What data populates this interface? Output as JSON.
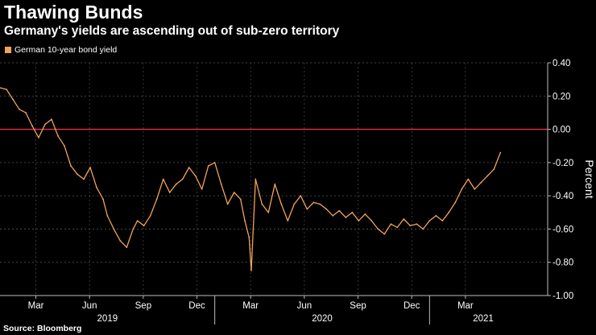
{
  "header": {
    "title": "Thawing Bunds",
    "subtitle": "Germany's yields are ascending out of sub-zero territory"
  },
  "footer": {
    "source": "Source: Bloomberg"
  },
  "colors": {
    "series": "#f0a35a",
    "zero_line": "#e8314a",
    "axis": "#bbbbbb",
    "background": "#000000"
  },
  "chart_data": {
    "type": "line",
    "title": "Thawing Bunds",
    "subtitle": "Germany's yields are ascending out of sub-zero territory",
    "ylabel": "Percent",
    "xlabel": "",
    "ylim": [
      -1.0,
      0.4
    ],
    "yticks": [
      0.4,
      0.2,
      0.0,
      -0.2,
      -0.4,
      -0.6,
      -0.8,
      -1.0
    ],
    "ytick_labels": [
      "0.40",
      "0.20",
      "0.00",
      "-0.20",
      "-0.40",
      "-0.60",
      "-0.80",
      "-1.00"
    ],
    "xlim": [
      2019.0,
      2021.55
    ],
    "xticks": [
      {
        "x": 2019.167,
        "label": "Mar"
      },
      {
        "x": 2019.417,
        "label": "Jun"
      },
      {
        "x": 2019.667,
        "label": "Sep"
      },
      {
        "x": 2019.917,
        "label": "Dec"
      },
      {
        "x": 2020.167,
        "label": "Mar"
      },
      {
        "x": 2020.417,
        "label": "Jun"
      },
      {
        "x": 2020.667,
        "label": "Sep"
      },
      {
        "x": 2020.917,
        "label": "Dec"
      },
      {
        "x": 2021.167,
        "label": "Mar"
      }
    ],
    "year_labels": [
      {
        "x": 2019.5,
        "label": "2019"
      },
      {
        "x": 2020.5,
        "label": "2020"
      },
      {
        "x": 2021.25,
        "label": "2021"
      }
    ],
    "reference_line": {
      "y": 0.0
    },
    "legend": {
      "position": "top-left",
      "entries": [
        "German 10-year bond yield"
      ]
    },
    "series": [
      {
        "name": "German 10-year bond yield",
        "x": [
          2019.0,
          2019.03,
          2019.06,
          2019.09,
          2019.12,
          2019.15,
          2019.18,
          2019.21,
          2019.24,
          2019.27,
          2019.3,
          2019.33,
          2019.36,
          2019.39,
          2019.42,
          2019.45,
          2019.48,
          2019.5,
          2019.53,
          2019.56,
          2019.59,
          2019.62,
          2019.64,
          2019.67,
          2019.7,
          2019.73,
          2019.76,
          2019.79,
          2019.82,
          2019.85,
          2019.88,
          2019.91,
          2019.94,
          2019.97,
          2020.0,
          2020.03,
          2020.06,
          2020.09,
          2020.12,
          2020.14,
          2020.16,
          2020.17,
          2020.19,
          2020.22,
          2020.25,
          2020.28,
          2020.31,
          2020.34,
          2020.37,
          2020.4,
          2020.43,
          2020.46,
          2020.49,
          2020.52,
          2020.55,
          2020.58,
          2020.61,
          2020.64,
          2020.67,
          2020.7,
          2020.73,
          2020.76,
          2020.79,
          2020.82,
          2020.85,
          2020.88,
          2020.91,
          2020.94,
          2020.97,
          2021.0,
          2021.03,
          2021.06,
          2021.09,
          2021.12,
          2021.15,
          2021.18,
          2021.21,
          2021.24,
          2021.27,
          2021.3,
          2021.33
        ],
        "values": [
          0.25,
          0.24,
          0.18,
          0.12,
          0.1,
          0.02,
          -0.05,
          0.03,
          0.06,
          -0.04,
          -0.1,
          -0.22,
          -0.27,
          -0.3,
          -0.23,
          -0.35,
          -0.42,
          -0.52,
          -0.6,
          -0.67,
          -0.71,
          -0.6,
          -0.55,
          -0.58,
          -0.52,
          -0.42,
          -0.3,
          -0.38,
          -0.33,
          -0.3,
          -0.23,
          -0.28,
          -0.36,
          -0.22,
          -0.2,
          -0.33,
          -0.45,
          -0.38,
          -0.42,
          -0.55,
          -0.65,
          -0.85,
          -0.3,
          -0.45,
          -0.5,
          -0.33,
          -0.45,
          -0.55,
          -0.45,
          -0.4,
          -0.48,
          -0.44,
          -0.45,
          -0.48,
          -0.52,
          -0.49,
          -0.53,
          -0.5,
          -0.55,
          -0.51,
          -0.55,
          -0.6,
          -0.63,
          -0.57,
          -0.59,
          -0.54,
          -0.58,
          -0.57,
          -0.6,
          -0.55,
          -0.52,
          -0.55,
          -0.5,
          -0.44,
          -0.36,
          -0.3,
          -0.36,
          -0.32,
          -0.28,
          -0.24,
          -0.14
        ]
      }
    ]
  }
}
